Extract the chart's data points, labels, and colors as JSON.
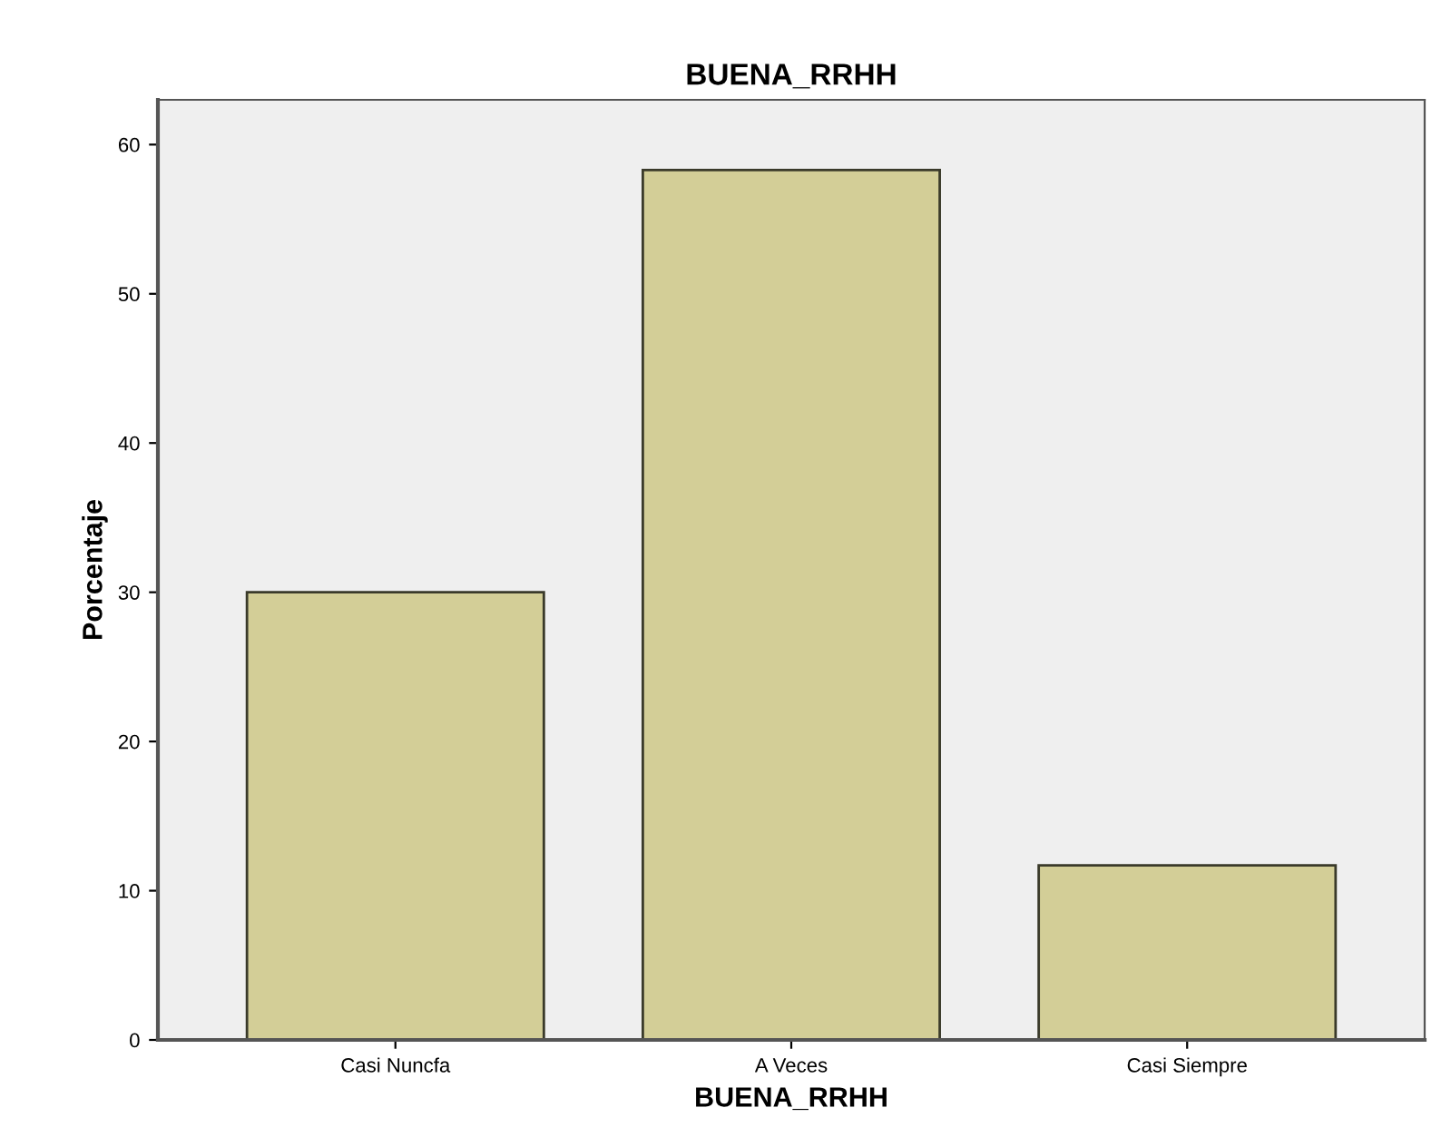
{
  "chart_data": {
    "type": "bar",
    "title": "BUENA_RRHH",
    "xlabel": "BUENA_RRHH",
    "ylabel": "Porcentaje",
    "categories": [
      "Casi Nuncfa",
      "A Veces",
      "Casi Siempre"
    ],
    "values": [
      30.0,
      58.3,
      11.7
    ],
    "color": "#d3ce97",
    "ylim": [
      0,
      63
    ],
    "yticks": [
      0,
      10,
      20,
      30,
      40,
      50,
      60
    ],
    "grid": false,
    "legend": false
  }
}
